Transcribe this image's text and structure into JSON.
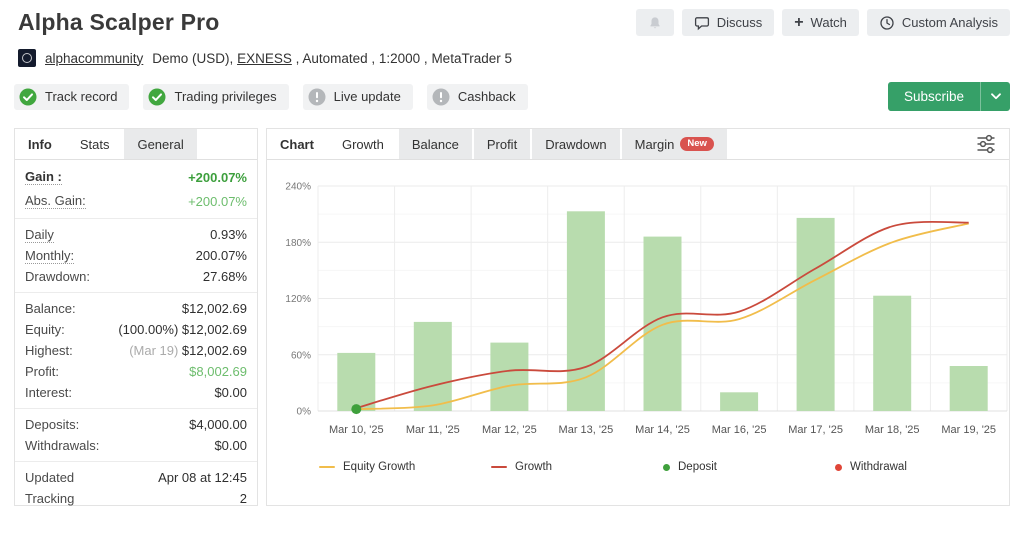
{
  "header": {
    "title": "Alpha Scalper Pro",
    "actions": {
      "discuss": "Discuss",
      "watch": "Watch",
      "custom_analysis": "Custom Analysis"
    },
    "account": {
      "user": "alphacommunity",
      "details_pre": "Demo (USD), ",
      "broker": "EXNESS",
      "details_post": " , Automated , 1:2000 , MetaTrader 5"
    },
    "badges": [
      {
        "label": "Track record",
        "status": "ok"
      },
      {
        "label": "Trading privileges",
        "status": "ok"
      },
      {
        "label": "Live update",
        "status": "warn"
      },
      {
        "label": "Cashback",
        "status": "warn"
      }
    ],
    "subscribe_label": "Subscribe"
  },
  "stats_panel": {
    "tabs": [
      {
        "label": "Info",
        "first": true
      },
      {
        "label": "Stats",
        "active": true
      },
      {
        "label": "General"
      }
    ],
    "groups": [
      [
        {
          "label": "Gain :",
          "value": "+200.07%",
          "label_class": "bold dotted",
          "value_class": "green-bold"
        },
        {
          "label": "Abs. Gain:",
          "value": "+200.07%",
          "label_class": "dotted",
          "value_class": "green"
        }
      ],
      [
        {
          "label": "Daily",
          "value": "0.93%",
          "label_class": "dotted"
        },
        {
          "label": "Monthly:",
          "value": "200.07%",
          "label_class": "dotted"
        },
        {
          "label": "Drawdown:",
          "value": "27.68%"
        }
      ],
      [
        {
          "label": "Balance:",
          "value": "$12,002.69"
        },
        {
          "label": "Equity:",
          "prefix": "(100.00%) ",
          "value": "$12,002.69"
        },
        {
          "label": "Highest:",
          "prefix": "(Mar 19) ",
          "prefix_class": "muted",
          "value": "$12,002.69"
        },
        {
          "label": "Profit:",
          "value": "$8,002.69",
          "value_class": "green"
        },
        {
          "label": "Interest:",
          "value": "$0.00"
        }
      ],
      [
        {
          "label": "Deposits:",
          "value": "$4,000.00"
        },
        {
          "label": "Withdrawals:",
          "value": "$0.00"
        }
      ],
      [
        {
          "label": "Updated",
          "value": "Apr 08 at 12:45"
        },
        {
          "label": "Tracking",
          "value": "2"
        }
      ]
    ]
  },
  "chart_panel": {
    "tabs": [
      {
        "label": "Chart",
        "first": true
      },
      {
        "label": "Growth",
        "active": true
      },
      {
        "label": "Balance"
      },
      {
        "label": "Profit"
      },
      {
        "label": "Drawdown"
      },
      {
        "label": "Margin",
        "badge": "New"
      }
    ]
  },
  "chart_data": {
    "type": "bar",
    "title": "Growth",
    "ylabel": "%",
    "ylim": [
      0,
      240
    ],
    "yticks": [
      0,
      60,
      120,
      180,
      240
    ],
    "ytick_labels": [
      "0%",
      "60%",
      "120%",
      "180%",
      "240%"
    ],
    "grid": true,
    "legend_position": "bottom",
    "categories": [
      "Mar 10, '25",
      "Mar 11, '25",
      "Mar 12, '25",
      "Mar 13, '25",
      "Mar 14, '25",
      "Mar 16, '25",
      "Mar 17, '25",
      "Mar 18, '25",
      "Mar 19, '25"
    ],
    "bars": {
      "name": "Daily growth bars",
      "color": "#b8dcae",
      "values": [
        62,
        95,
        73,
        213,
        186,
        20,
        206,
        123,
        48
      ]
    },
    "series": [
      {
        "name": "Equity Growth",
        "type": "line",
        "color": "#f1bd4b",
        "values": [
          2,
          6,
          27,
          36,
          92,
          98,
          140,
          180,
          200
        ]
      },
      {
        "name": "Growth",
        "type": "line",
        "color": "#ca4a3c",
        "values": [
          3,
          27,
          43,
          47,
          100,
          106,
          152,
          197,
          201
        ]
      }
    ],
    "markers": [
      {
        "name": "Deposit",
        "color": "#3fa03c",
        "category_index": 0,
        "value": 2
      }
    ],
    "legend": [
      {
        "label": "Equity Growth",
        "marker": "line",
        "color": "#f1bd4b"
      },
      {
        "label": "Growth",
        "marker": "line",
        "color": "#ca4a3c"
      },
      {
        "label": "Deposit",
        "marker": "dot",
        "color": "#3fa03c"
      },
      {
        "label": "Withdrawal",
        "marker": "dot",
        "color": "#e04638"
      }
    ],
    "colors": {
      "grid_major": "#ebebeb",
      "grid_minor": "#f6f6f6",
      "axis_label": "#777",
      "x_label": "#555"
    }
  }
}
